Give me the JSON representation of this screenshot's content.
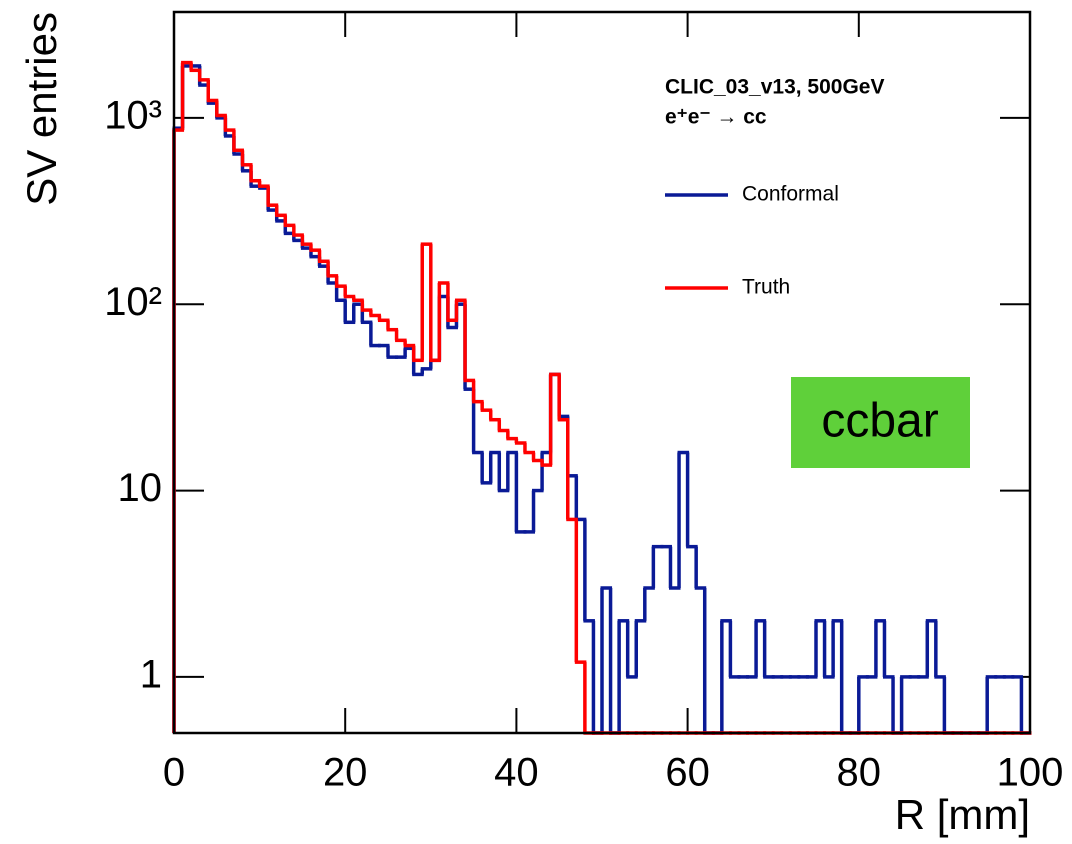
{
  "chart_data": {
    "type": "histogram",
    "x_label": "R [mm]",
    "y_label": "SV entries",
    "annotations": [
      "CLIC_03_v13, 500GeV",
      "e⁺e⁻ → cc",
      "ccbar"
    ],
    "log_y": true,
    "xlim": [
      0,
      100
    ],
    "xticks": [
      0,
      20,
      40,
      60,
      80,
      100
    ],
    "ylim": [
      0.5,
      3700
    ],
    "yticks": [
      {
        "value": 1000,
        "label": "10³"
      },
      {
        "value": 100,
        "label": "10²"
      },
      10,
      1
    ],
    "bins": [
      0,
      1,
      2,
      3,
      4,
      5,
      6,
      7,
      8,
      9,
      10,
      11,
      12,
      13,
      14,
      15,
      16,
      17,
      18,
      19,
      20,
      21,
      22,
      23,
      24,
      25,
      26,
      27,
      28,
      29,
      30,
      31,
      32,
      33,
      34,
      35,
      36,
      37,
      38,
      39,
      40,
      41,
      42,
      43,
      44,
      45,
      46,
      47,
      48,
      49,
      50,
      51,
      52,
      53,
      54,
      55,
      56,
      57,
      58,
      59,
      60,
      61,
      62,
      63,
      64,
      65,
      66,
      67,
      68,
      69,
      70,
      71,
      72,
      73,
      74,
      75,
      76,
      77,
      78,
      79,
      80,
      81,
      82,
      83,
      84,
      85,
      86,
      87,
      88,
      89,
      90,
      91,
      92,
      93,
      94,
      95,
      96,
      97,
      98,
      99,
      100
    ],
    "series": [
      {
        "name": "Conformal",
        "color": "#0a1a96",
        "values": [
          880,
          1900,
          1900,
          1500,
          1200,
          1000,
          800,
          640,
          520,
          430,
          420,
          320,
          280,
          240,
          220,
          200,
          180,
          160,
          130,
          105,
          80,
          100,
          80,
          60,
          60,
          52,
          52,
          58,
          42,
          45,
          50,
          110,
          75,
          100,
          35,
          16,
          11,
          16,
          10,
          16,
          6,
          6,
          10,
          16,
          42,
          25,
          12,
          7,
          2,
          0,
          3,
          0,
          2,
          1,
          2,
          3,
          5,
          5,
          3,
          16,
          5,
          3,
          0,
          0,
          2,
          1,
          1,
          1,
          2,
          1,
          1,
          1,
          1,
          1,
          1,
          2,
          1,
          2,
          0,
          0,
          1,
          1,
          2,
          1,
          0,
          1,
          1,
          1,
          2,
          1,
          0,
          0,
          0,
          0,
          0,
          1,
          1,
          1,
          1,
          0
        ]
      },
      {
        "name": "Truth",
        "color": "#ff0000",
        "values": [
          860,
          1980,
          1800,
          1600,
          1240,
          1030,
          860,
          670,
          560,
          460,
          430,
          340,
          300,
          265,
          235,
          210,
          195,
          170,
          142,
          125,
          110,
          105,
          93,
          87,
          82,
          73,
          64,
          60,
          50,
          210,
          50,
          130,
          82,
          105,
          39,
          30,
          27,
          24,
          21,
          19,
          18,
          16,
          14.5,
          13.7,
          42,
          24,
          7,
          1.2,
          0,
          0,
          0,
          0,
          0,
          0,
          0,
          0,
          0,
          0,
          0,
          0,
          0,
          0,
          0,
          0,
          0,
          0,
          0,
          0,
          0,
          0,
          0,
          0,
          0,
          0,
          0,
          0,
          0,
          0,
          0,
          0,
          0,
          0,
          0,
          0,
          0,
          0,
          0,
          0,
          0,
          0,
          0,
          0,
          0,
          0,
          0,
          0,
          0,
          0,
          0,
          0
        ]
      }
    ]
  }
}
